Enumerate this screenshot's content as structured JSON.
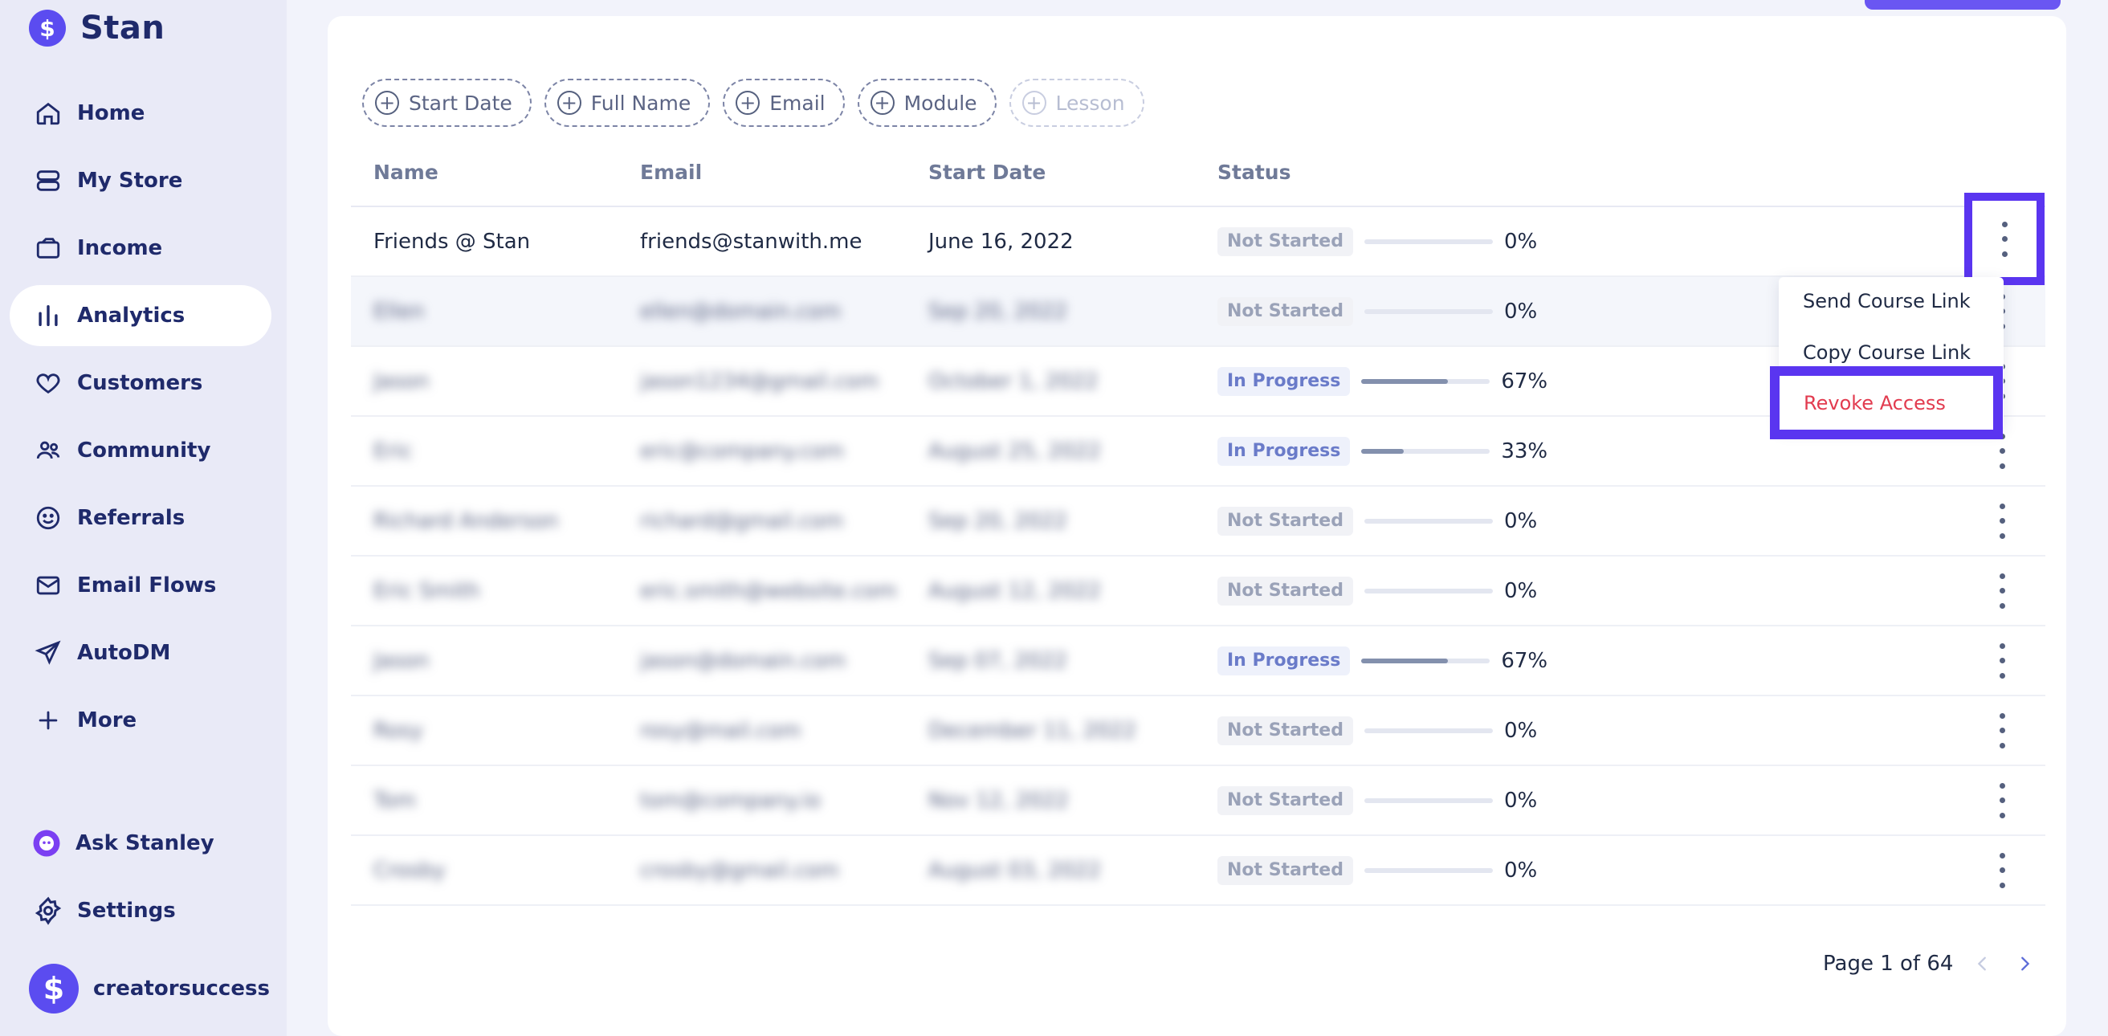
{
  "brand": {
    "name": "Stan"
  },
  "sidebar": {
    "items": [
      {
        "label": "Home",
        "icon": "home-icon"
      },
      {
        "label": "My Store",
        "icon": "store-icon"
      },
      {
        "label": "Income",
        "icon": "wallet-icon"
      },
      {
        "label": "Analytics",
        "icon": "analytics-icon",
        "active": true
      },
      {
        "label": "Customers",
        "icon": "heart-icon"
      },
      {
        "label": "Community",
        "icon": "community-icon"
      },
      {
        "label": "Referrals",
        "icon": "smiley-icon"
      },
      {
        "label": "Email Flows",
        "icon": "mail-icon"
      },
      {
        "label": "AutoDM",
        "icon": "send-icon"
      },
      {
        "label": "More",
        "icon": "plus-icon"
      }
    ],
    "bottom": [
      {
        "label": "Ask Stanley",
        "icon": "stanley-icon"
      },
      {
        "label": "Settings",
        "icon": "settings-icon"
      }
    ],
    "account": {
      "name": "creatorsuccess"
    }
  },
  "filters": [
    {
      "label": "Start Date",
      "enabled": true
    },
    {
      "label": "Full Name",
      "enabled": true
    },
    {
      "label": "Email",
      "enabled": true
    },
    {
      "label": "Module",
      "enabled": true
    },
    {
      "label": "Lesson",
      "enabled": false
    }
  ],
  "table": {
    "headers": {
      "name": "Name",
      "email": "Email",
      "start_date": "Start Date",
      "status": "Status"
    },
    "rows": [
      {
        "name": "Friends @ Stan",
        "email": "friends@stanwith.me",
        "start_date": "June 16, 2022",
        "status": "Not Started",
        "progress": "0%",
        "blurred": false
      },
      {
        "name": "Ellen",
        "email": "ellen@domain.com",
        "start_date": "Sep 20, 2022",
        "status": "Not Started",
        "progress": "0%",
        "blurred": true
      },
      {
        "name": "Jason",
        "email": "jason1234@gmail.com",
        "start_date": "October 1, 2022",
        "status": "In Progress",
        "progress": "67%",
        "blurred": true
      },
      {
        "name": "Eric",
        "email": "eric@company.com",
        "start_date": "August 25, 2022",
        "status": "In Progress",
        "progress": "33%",
        "blurred": true
      },
      {
        "name": "Richard Anderson",
        "email": "richard@gmail.com",
        "start_date": "Sep 20, 2022",
        "status": "Not Started",
        "progress": "0%",
        "blurred": true
      },
      {
        "name": "Eric Smith",
        "email": "eric.smith@website.com",
        "start_date": "August 12, 2022",
        "status": "Not Started",
        "progress": "0%",
        "blurred": true
      },
      {
        "name": "Jason",
        "email": "jason@domain.com",
        "start_date": "Sep 07, 2022",
        "status": "In Progress",
        "progress": "67%",
        "blurred": true
      },
      {
        "name": "Rosy",
        "email": "rosy@mail.com",
        "start_date": "December 11, 2022",
        "status": "Not Started",
        "progress": "0%",
        "blurred": true
      },
      {
        "name": "Tom",
        "email": "tom@company.io",
        "start_date": "Nov 12, 2022",
        "status": "Not Started",
        "progress": "0%",
        "blurred": true
      },
      {
        "name": "Crosby",
        "email": "crosby@gmail.com",
        "start_date": "August 03, 2022",
        "status": "Not Started",
        "progress": "0%",
        "blurred": true
      }
    ]
  },
  "context_menu": {
    "send_link": "Send Course Link",
    "copy_link": "Copy Course Link",
    "revoke": "Revoke Access"
  },
  "pagination": {
    "text": "Page 1 of 64"
  },
  "colors": {
    "accent": "#5b4cf0",
    "highlight": "#5a35f0",
    "danger": "#e23b4f"
  }
}
